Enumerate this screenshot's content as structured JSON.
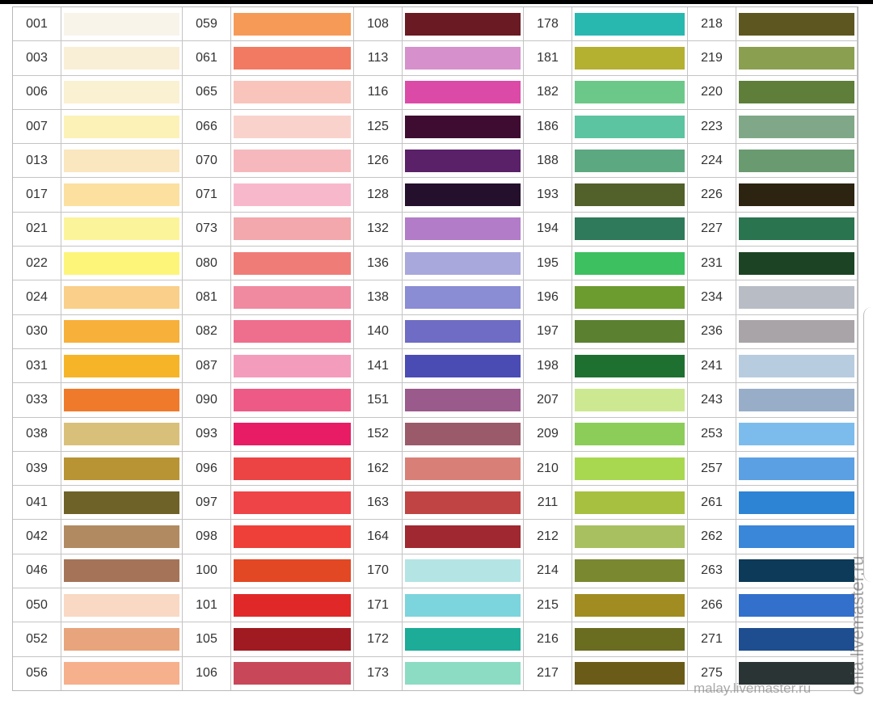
{
  "columns": [
    {
      "codes": [
        "001",
        "003",
        "006",
        "007",
        "013",
        "017",
        "021",
        "022",
        "024",
        "030",
        "031",
        "033",
        "038",
        "039",
        "041",
        "042",
        "046",
        "050",
        "052",
        "056"
      ],
      "colors": [
        "#f8f4ea",
        "#f9efd6",
        "#faf0d2",
        "#fcf2b8",
        "#fae6bf",
        "#fbe0a0",
        "#fcf49a",
        "#fcf57a",
        "#f9cf8a",
        "#f7b03a",
        "#f6b528",
        "#f07a2c",
        "#d9c07a",
        "#b89434",
        "#6e6228",
        "#b28a62",
        "#a57458",
        "#f9d8c4",
        "#e8a47c",
        "#f6b08c"
      ]
    },
    {
      "codes": [
        "059",
        "061",
        "065",
        "066",
        "070",
        "071",
        "073",
        "080",
        "081",
        "082",
        "087",
        "090",
        "093",
        "096",
        "097",
        "098",
        "100",
        "101",
        "105",
        "106"
      ],
      "colors": [
        "#f69a58",
        "#f27a62",
        "#f8c4bc",
        "#fad2cc",
        "#f6b8bc",
        "#f8b8cc",
        "#f2a8ac",
        "#f07c78",
        "#f08aa0",
        "#ee6e8e",
        "#f49cbc",
        "#ee5a86",
        "#e81c64",
        "#ec4444",
        "#ee4448",
        "#ee4038",
        "#e24824",
        "#e02828",
        "#a01a22",
        "#c8485a"
      ]
    },
    {
      "codes": [
        "108",
        "113",
        "116",
        "125",
        "126",
        "128",
        "132",
        "136",
        "138",
        "140",
        "141",
        "151",
        "152",
        "162",
        "163",
        "164",
        "170",
        "171",
        "172",
        "173"
      ],
      "colors": [
        "#6a1a22",
        "#d690cc",
        "#dc4aa8",
        "#3e0c30",
        "#5a2068",
        "#24102c",
        "#b27cc8",
        "#a8a8dc",
        "#8a8cd4",
        "#6e6cc4",
        "#4a4cb4",
        "#9a5a8c",
        "#9a5a6a",
        "#d88078",
        "#c04444",
        "#a02830",
        "#b4e4e4",
        "#7cd4dc",
        "#1cac98",
        "#8cdcc4"
      ]
    },
    {
      "codes": [
        "178",
        "181",
        "182",
        "186",
        "188",
        "193",
        "194",
        "195",
        "196",
        "197",
        "198",
        "207",
        "209",
        "210",
        "211",
        "212",
        "214",
        "215",
        "216",
        "217"
      ],
      "colors": [
        "#28b8b0",
        "#b4b030",
        "#6cc888",
        "#5cc4a0",
        "#5ca880",
        "#52602a",
        "#2e7a5a",
        "#3cc060",
        "#6c9c30",
        "#5a8030",
        "#1e7030",
        "#cce890",
        "#8ccc58",
        "#a8d850",
        "#a8c040",
        "#a8c060",
        "#7a8830",
        "#a08c20",
        "#6a6c20",
        "#6a5c18"
      ]
    },
    {
      "codes": [
        "218",
        "219",
        "220",
        "223",
        "224",
        "226",
        "227",
        "231",
        "234",
        "236",
        "241",
        "243",
        "253",
        "257",
        "261",
        "262",
        "263",
        "266",
        "271",
        "275"
      ],
      "colors": [
        "#5e5620",
        "#8aa050",
        "#5e7e3a",
        "#80a888",
        "#6a9a70",
        "#2c2410",
        "#2a7450",
        "#1c4424",
        "#b8bcc4",
        "#a8a4a8",
        "#b8cce0",
        "#98aec8",
        "#7cbcec",
        "#5ca0e4",
        "#2e84d4",
        "#3a86d8",
        "#0c3a58",
        "#3270cc",
        "#1e4e90",
        "#2a3434"
      ]
    }
  ],
  "watermark": {
    "bottom": "malay.livemaster.ru",
    "side": "onia.livemaster.ru"
  }
}
